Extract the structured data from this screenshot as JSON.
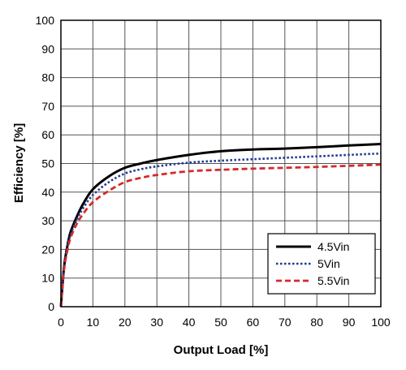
{
  "chart_data": {
    "type": "line",
    "title": "",
    "xlabel": "Output Load [%]",
    "ylabel": "Efficiency [%]",
    "xlim": [
      0,
      100
    ],
    "ylim": [
      0,
      100
    ],
    "xticks": [
      0,
      10,
      20,
      30,
      40,
      50,
      60,
      70,
      80,
      90,
      100
    ],
    "yticks": [
      0,
      10,
      20,
      30,
      40,
      50,
      60,
      70,
      80,
      90,
      100
    ],
    "grid": true,
    "legend_position": "bottom-right",
    "series": [
      {
        "name": "4.5Vin",
        "color": "#000000",
        "style": "solid",
        "x": [
          0,
          1,
          2,
          3,
          5,
          7,
          10,
          15,
          20,
          25,
          30,
          40,
          50,
          60,
          70,
          80,
          90,
          100
        ],
        "y": [
          0,
          14,
          21,
          26,
          31.5,
          36,
          41,
          45.5,
          48.5,
          50,
          51.2,
          53,
          54.3,
          54.9,
          55.2,
          55.7,
          56.3,
          56.8
        ]
      },
      {
        "name": "5Vin",
        "color": "#1f3a93",
        "style": "dotted",
        "x": [
          0,
          1,
          2,
          3,
          5,
          7,
          10,
          15,
          20,
          25,
          30,
          40,
          50,
          60,
          70,
          80,
          90,
          100
        ],
        "y": [
          0,
          13.5,
          20.5,
          25,
          30.5,
          34.5,
          39,
          43.5,
          46.5,
          48,
          49,
          50.3,
          51,
          51.5,
          52,
          52.5,
          53,
          53.5
        ]
      },
      {
        "name": "5.5Vin",
        "color": "#d42a2a",
        "style": "dashed",
        "x": [
          0,
          1,
          2,
          3,
          5,
          7,
          10,
          15,
          20,
          25,
          30,
          40,
          50,
          60,
          70,
          80,
          90,
          100
        ],
        "y": [
          0,
          13,
          19.5,
          24,
          29,
          32.5,
          36.5,
          40.5,
          43.5,
          45,
          46,
          47.3,
          47.8,
          48.2,
          48.5,
          48.8,
          49.2,
          49.6
        ]
      }
    ]
  }
}
